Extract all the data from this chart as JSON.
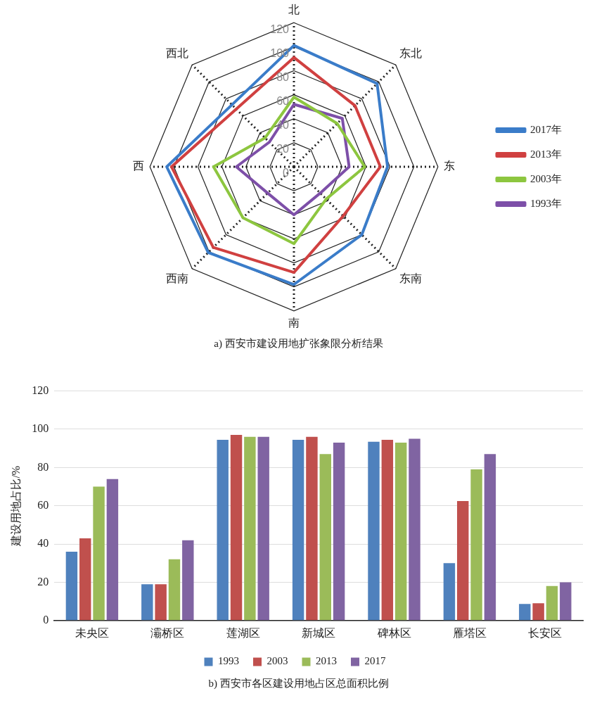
{
  "chart_data": [
    {
      "type": "radar",
      "categories": [
        "北",
        "东北",
        "东",
        "东南",
        "南",
        "西南",
        "西",
        "西北"
      ],
      "series": [
        {
          "name": "2017年",
          "color": "#3a7cc9",
          "values": [
            101,
            98,
            78,
            80,
            98,
            101,
            106,
            73
          ]
        },
        {
          "name": "2013年",
          "color": "#d04040",
          "values": [
            91,
            72,
            72,
            58,
            88,
            95,
            102,
            68
          ]
        },
        {
          "name": "2003年",
          "color": "#8dc63f",
          "values": [
            58,
            51,
            59,
            38,
            64,
            60,
            67,
            34
          ]
        },
        {
          "name": "1993年",
          "color": "#7d4fa8",
          "values": [
            52,
            57,
            46,
            31,
            40,
            31,
            48,
            29
          ]
        }
      ],
      "ylim": [
        0,
        120
      ],
      "yticks": [
        0,
        20,
        40,
        60,
        80,
        100,
        120
      ],
      "legend": "right",
      "marker": "none",
      "annotations": [
        "a)  西安市建设用地扩张象限分析结果"
      ]
    },
    {
      "type": "bar",
      "categories": [
        "未央区",
        "灞桥区",
        "莲湖区",
        "新城区",
        "碑林区",
        "雁塔区",
        "长安区"
      ],
      "series": [
        {
          "name": "1993",
          "color": "#4f81bd",
          "values": [
            36,
            19,
            94.5,
            94.5,
            93.5,
            30,
            8.7
          ]
        },
        {
          "name": "2003",
          "color": "#c0504d",
          "values": [
            43,
            19,
            97,
            96,
            94.5,
            62.5,
            9
          ]
        },
        {
          "name": "2013",
          "color": "#9bbb59",
          "values": [
            70,
            32,
            96,
            87,
            93,
            79,
            18
          ]
        },
        {
          "name": "2017",
          "color": "#8064a2",
          "values": [
            74,
            42,
            96,
            93,
            95,
            87,
            20
          ]
        }
      ],
      "ylabel": "建设用地占比/%",
      "ylim": [
        0,
        120
      ],
      "yticks": [
        0,
        20,
        40,
        60,
        80,
        100,
        120
      ],
      "grid": "y",
      "legend": "bottom",
      "annotations": [
        "b)  西安市各区建设用地占区总面积比例"
      ]
    }
  ]
}
